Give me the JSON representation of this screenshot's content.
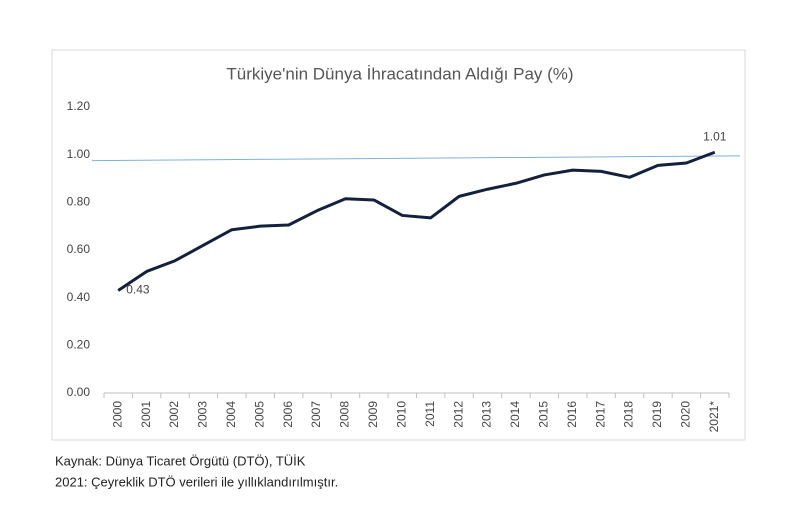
{
  "chart_data": {
    "type": "line",
    "title": "Türkiye'nin Dünya İhracatından Aldığı Pay (%)",
    "categories": [
      "2000",
      "2001",
      "2002",
      "2003",
      "2004",
      "2005",
      "2006",
      "2007",
      "2008",
      "2009",
      "2010",
      "2011",
      "2012",
      "2013",
      "2014",
      "2015",
      "2016",
      "2017",
      "2018",
      "2019",
      "2020",
      "2021*"
    ],
    "series": [
      {
        "color": "#14213d",
        "values": [
          0.43,
          0.51,
          0.555,
          0.62,
          0.685,
          0.7,
          0.705,
          0.765,
          0.815,
          0.81,
          0.745,
          0.735,
          0.825,
          0.855,
          0.88,
          0.915,
          0.935,
          0.93,
          0.905,
          0.955,
          0.965,
          1.01
        ],
        "value_labels": [
          "0.43",
          null,
          null,
          null,
          null,
          null,
          null,
          null,
          null,
          null,
          null,
          null,
          null,
          null,
          null,
          null,
          null,
          null,
          null,
          null,
          null,
          "1.01"
        ]
      }
    ],
    "reference_line": {
      "values": [
        0.975,
        0.995
      ],
      "color": "#7fb2d6"
    },
    "ylim": [
      0,
      1.2
    ],
    "yticks": [
      {
        "value": 0,
        "label": "0.00"
      },
      {
        "value": 0.2,
        "label": "0.20"
      },
      {
        "value": 0.4,
        "label": "0.40"
      },
      {
        "value": 0.6,
        "label": "0.60"
      },
      {
        "value": 0.8,
        "label": "0.80"
      },
      {
        "value": 1.0,
        "label": "1.00"
      },
      {
        "value": 1.2,
        "label": "1.20"
      }
    ],
    "grid": false
  },
  "footer": [
    "Kaynak: Dünya Ticaret Örgütü (DTÖ), TÜİK",
    "2021: Çeyreklik DTÖ verileri ile yıllıklandırılmıştır."
  ]
}
